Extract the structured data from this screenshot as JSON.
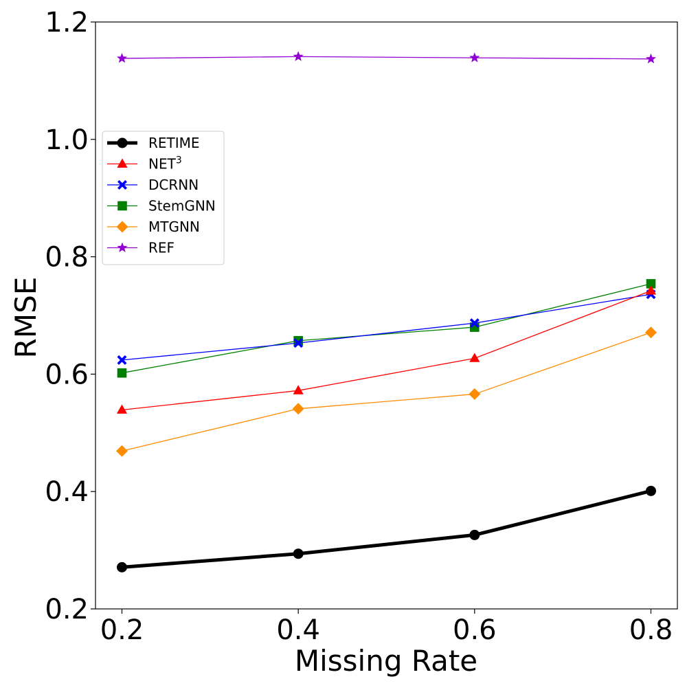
{
  "chart_data": {
    "type": "line",
    "title": "",
    "xlabel": "Missing Rate",
    "ylabel": "RMSE",
    "x": [
      0.2,
      0.4,
      0.6,
      0.8
    ],
    "x_tick_labels": [
      "0.2",
      "0.4",
      "0.6",
      "0.8"
    ],
    "y_ticks": [
      0.2,
      0.4,
      0.6,
      0.8,
      1.0,
      1.2
    ],
    "y_tick_labels": [
      "0.2",
      "0.4",
      "0.6",
      "0.8",
      "1.0",
      "1.2"
    ],
    "xlim": [
      0.17,
      0.83
    ],
    "ylim": [
      0.2,
      1.2
    ],
    "grid": false,
    "legend_position": "upper-left",
    "series": [
      {
        "key": "retime",
        "name": "RETIME",
        "name_base": "RETIME",
        "name_sup": "",
        "color": "#000000",
        "marker": "circle",
        "width": "thick",
        "values": [
          0.271,
          0.294,
          0.326,
          0.401
        ]
      },
      {
        "key": "net3",
        "name": "NET3",
        "name_base": "NET",
        "name_sup": "3",
        "color": "#ff0000",
        "marker": "triangle",
        "width": "thin",
        "values": [
          0.539,
          0.572,
          0.627,
          0.742
        ]
      },
      {
        "key": "dcrnn",
        "name": "DCRNN",
        "name_base": "DCRNN",
        "name_sup": "",
        "color": "#0000ff",
        "marker": "x",
        "width": "thin",
        "values": [
          0.624,
          0.653,
          0.687,
          0.736
        ]
      },
      {
        "key": "stemgnn",
        "name": "StemGNN",
        "name_base": "StemGNN",
        "name_sup": "",
        "color": "#008000",
        "marker": "square",
        "width": "thin",
        "values": [
          0.602,
          0.657,
          0.68,
          0.754
        ]
      },
      {
        "key": "mtgnn",
        "name": "MTGNN",
        "name_base": "MTGNN",
        "name_sup": "",
        "color": "#ff8c00",
        "marker": "diamond",
        "width": "thin",
        "values": [
          0.469,
          0.541,
          0.566,
          0.671
        ]
      },
      {
        "key": "ref",
        "name": "REF",
        "name_base": "REF",
        "name_sup": "",
        "color": "#9400d3",
        "marker": "star",
        "width": "thin",
        "values": [
          1.138,
          1.141,
          1.139,
          1.137
        ]
      }
    ]
  }
}
